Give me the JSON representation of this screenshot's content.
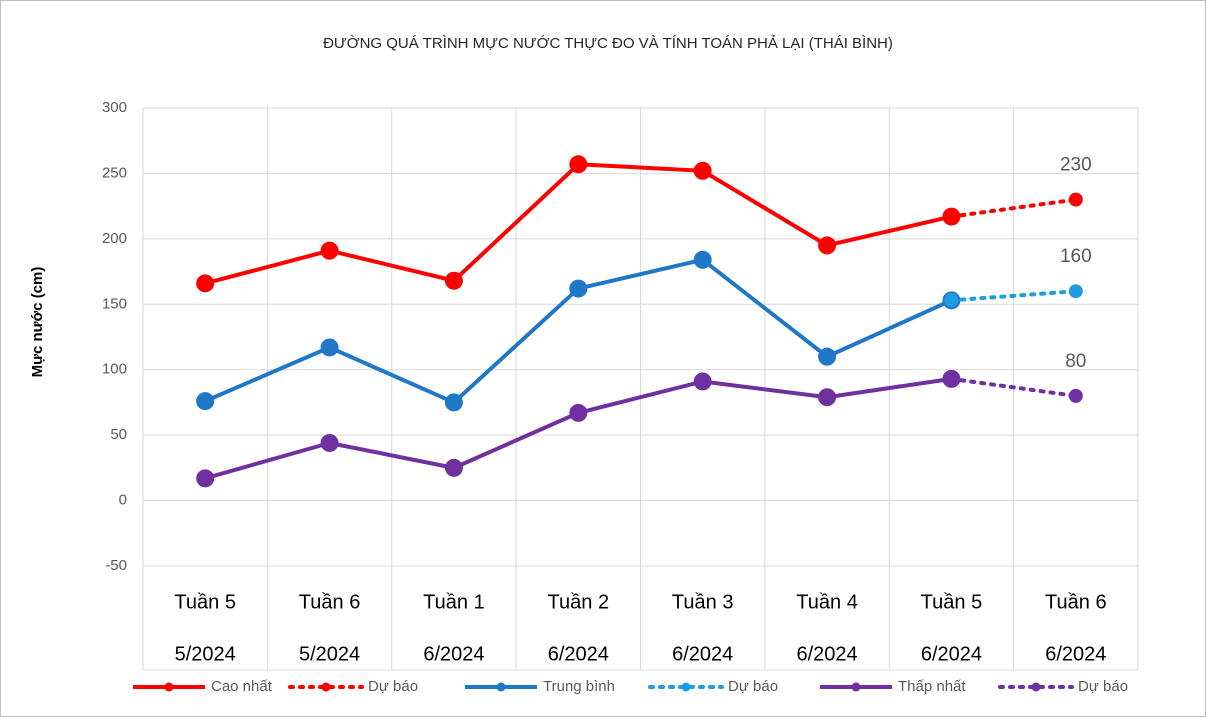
{
  "chart_data": {
    "type": "line",
    "title": "ĐƯỜNG QUÁ TRÌNH MỰC NƯỚC THỰC ĐO VÀ TÍNH TOÁN PHẢ LẠI (THÁI BÌNH)",
    "y_label": "Mực nước (cm)",
    "categories": [
      [
        "Tuần 5",
        "5/2024"
      ],
      [
        "Tuần 6",
        "5/2024"
      ],
      [
        "Tuần 1",
        "6/2024"
      ],
      [
        "Tuần 2",
        "6/2024"
      ],
      [
        "Tuần 3",
        "6/2024"
      ],
      [
        "Tuần 4",
        "6/2024"
      ],
      [
        "Tuần 5",
        "6/2024"
      ],
      [
        "Tuần 6",
        "6/2024"
      ]
    ],
    "ylim": [
      -50,
      300
    ],
    "yticks": [
      -50,
      0,
      50,
      100,
      150,
      200,
      250,
      300
    ],
    "grid": true,
    "legend": "bottom",
    "series": [
      {
        "name": "Cao nhất",
        "color": "#ff0000",
        "dotted": false,
        "values": [
          166,
          191,
          168,
          257,
          252,
          195,
          217,
          null
        ]
      },
      {
        "name": "Dự báo",
        "color": "#ff0000",
        "dotted": true,
        "values": [
          null,
          null,
          null,
          null,
          null,
          null,
          217,
          230
        ]
      },
      {
        "name": "Trung bình",
        "color": "#1f77c8",
        "dotted": false,
        "values": [
          76,
          117,
          75,
          162,
          184,
          110,
          153,
          null
        ]
      },
      {
        "name": "Dự báo",
        "color": "#1f9be0",
        "dotted": true,
        "values": [
          null,
          null,
          null,
          null,
          null,
          null,
          153,
          160
        ]
      },
      {
        "name": "Thấp nhất",
        "color": "#7030a0",
        "dotted": false,
        "values": [
          17,
          44,
          25,
          67,
          91,
          79,
          93,
          null
        ]
      },
      {
        "name": "Dự báo",
        "color": "#7030a0",
        "dotted": true,
        "values": [
          null,
          null,
          null,
          null,
          null,
          null,
          93,
          80
        ]
      }
    ]
  }
}
